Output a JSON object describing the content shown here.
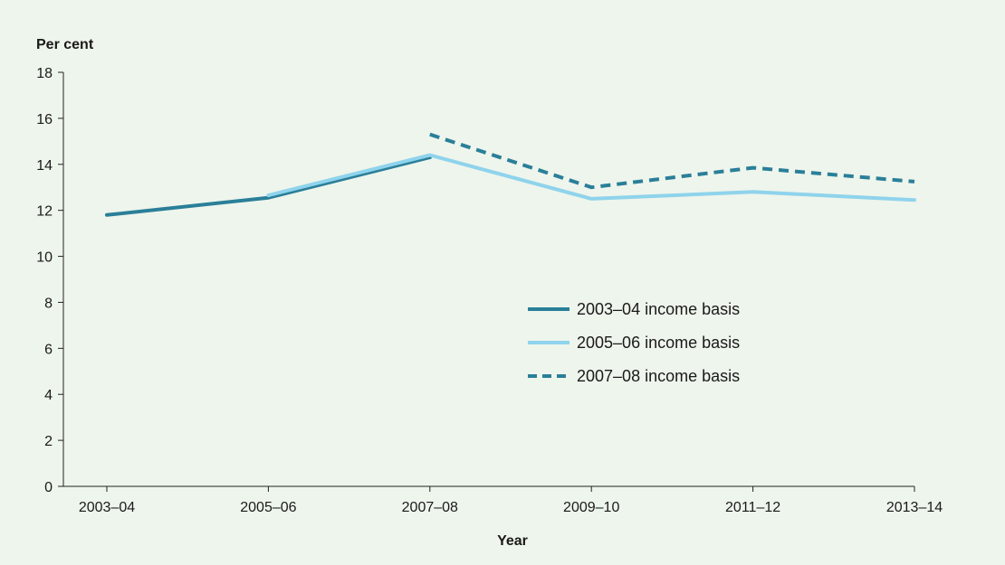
{
  "chart_data": {
    "type": "line",
    "ylabel": "Per cent",
    "xlabel": "Year",
    "categories": [
      "2003–04",
      "2005–06",
      "2007–08",
      "2009–10",
      "2011–12",
      "2013–14"
    ],
    "ylim": [
      0,
      18
    ],
    "yticks": [
      0,
      2,
      4,
      6,
      8,
      10,
      12,
      14,
      16,
      18
    ],
    "grid": false,
    "legend_position": "center-right",
    "series": [
      {
        "name": "2003–04 income basis",
        "color": "#2a7f99",
        "style": "solid",
        "values": [
          11.8,
          12.55,
          14.3,
          null,
          null,
          null
        ]
      },
      {
        "name": "2005–06 income basis",
        "color": "#8fd3ec",
        "style": "solid",
        "values": [
          null,
          12.65,
          14.4,
          12.5,
          12.8,
          12.45
        ]
      },
      {
        "name": "2007–08 income basis",
        "color": "#2a7f99",
        "style": "dashed",
        "values": [
          null,
          null,
          15.3,
          13.0,
          13.85,
          13.25
        ]
      }
    ]
  }
}
